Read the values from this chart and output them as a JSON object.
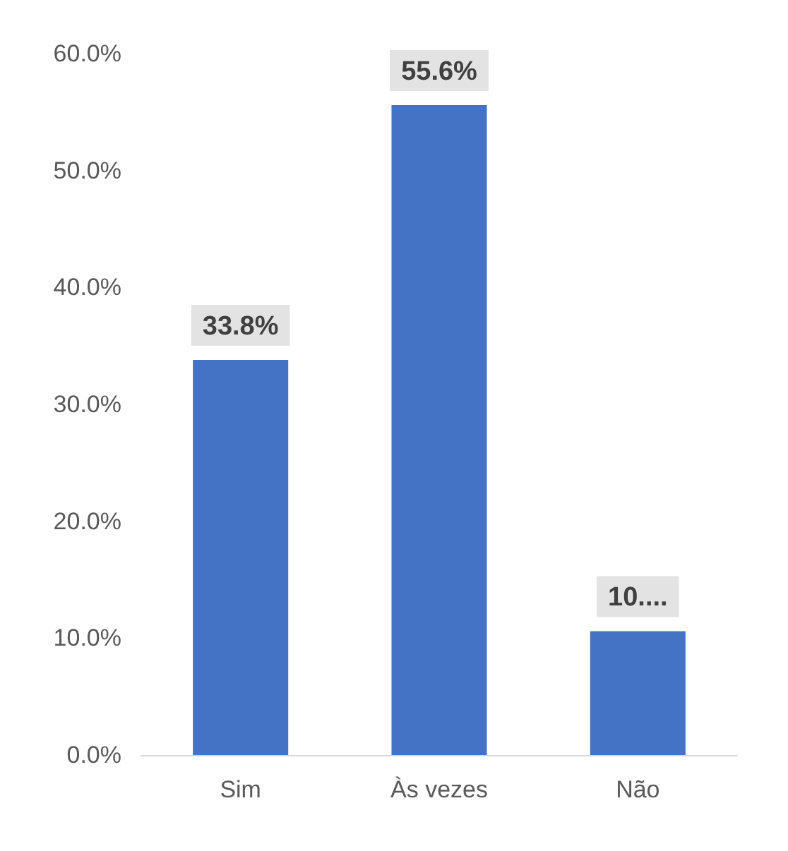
{
  "chart_data": {
    "type": "bar",
    "categories": [
      "Sim",
      "Às vezes",
      "Não"
    ],
    "values": [
      33.8,
      55.6,
      10.6
    ],
    "value_labels": [
      "33.8%",
      "55.6%",
      "10...."
    ],
    "color": "#4472c4",
    "ylim": [
      0,
      60
    ],
    "yticks": [
      {
        "value": 0,
        "label": "0.0%"
      },
      {
        "value": 10,
        "label": "10.0%"
      },
      {
        "value": 20,
        "label": "20.0%"
      },
      {
        "value": 30,
        "label": "30.0%"
      },
      {
        "value": 40,
        "label": "40.0%"
      },
      {
        "value": 50,
        "label": "50.0%"
      },
      {
        "value": 60,
        "label": "60.0%"
      }
    ],
    "grid": false
  }
}
